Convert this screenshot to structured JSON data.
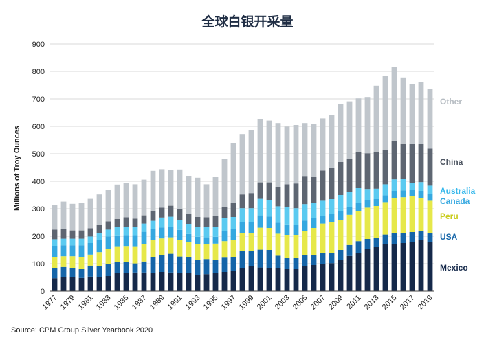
{
  "chart_data": {
    "type": "bar",
    "stacked": true,
    "title": "全球白银开采量",
    "ylabel": "Millions of Troy Ounces",
    "xlabel": "",
    "ylim": [
      0,
      900
    ],
    "yticks": [
      "0",
      "100",
      "200",
      "300",
      "400",
      "500",
      "600",
      "700",
      "800",
      "900"
    ],
    "grid": true,
    "legend": "right",
    "source": "Source: CPM Group Silver Yearbook 2020",
    "categories": [
      "1977",
      "1978",
      "1979",
      "1980",
      "1981",
      "1982",
      "1983",
      "1984",
      "1985",
      "1986",
      "1987",
      "1988",
      "1989",
      "1990",
      "1991",
      "1992",
      "1993",
      "1994",
      "1995",
      "1996",
      "1997",
      "1998",
      "1999",
      "2000",
      "2001",
      "2002",
      "2003",
      "2004",
      "2005",
      "2006",
      "2007",
      "2008",
      "2009",
      "2010",
      "2011",
      "2012",
      "2013",
      "2014",
      "2015",
      "2016",
      "2017",
      "2018",
      "2019"
    ],
    "tick_labels": [
      "1977",
      "1979",
      "1981",
      "1983",
      "1985",
      "1987",
      "1989",
      "1991",
      "1993",
      "1995",
      "1997",
      "1999",
      "2001",
      "2003",
      "2005",
      "2007",
      "2009",
      "2011",
      "2013",
      "2015",
      "2017",
      "2019"
    ],
    "series": [
      {
        "name": "Mexico",
        "color": "#15294a",
        "values": [
          47,
          50,
          50,
          48,
          53,
          50,
          55,
          65,
          67,
          68,
          68,
          67,
          70,
          68,
          66,
          65,
          60,
          62,
          65,
          70,
          75,
          85,
          90,
          86,
          85,
          85,
          80,
          80,
          90,
          95,
          100,
          102,
          115,
          128,
          140,
          155,
          160,
          170,
          172,
          175,
          180,
          185,
          180
        ]
      },
      {
        "name": "USA",
        "color": "#1565a8",
        "values": [
          38,
          38,
          35,
          32,
          40,
          40,
          44,
          40,
          40,
          33,
          40,
          57,
          62,
          68,
          60,
          58,
          55,
          55,
          50,
          52,
          50,
          60,
          55,
          65,
          65,
          44,
          40,
          40,
          40,
          35,
          38,
          38,
          35,
          40,
          42,
          35,
          35,
          36,
          40,
          37,
          35,
          35,
          31
        ]
      },
      {
        "name": "Peru",
        "color": "#e6e84a",
        "values": [
          40,
          39,
          42,
          45,
          40,
          52,
          56,
          56,
          55,
          60,
          64,
          62,
          60,
          60,
          60,
          55,
          55,
          55,
          58,
          60,
          62,
          67,
          67,
          80,
          80,
          80,
          85,
          85,
          90,
          100,
          108,
          110,
          110,
          110,
          110,
          114,
          115,
          118,
          128,
          130,
          130,
          120,
          118
        ]
      },
      {
        "name": "Canada",
        "color": "#35a8e0",
        "values": [
          40,
          40,
          40,
          42,
          42,
          45,
          44,
          42,
          42,
          43,
          44,
          40,
          40,
          38,
          37,
          30,
          28,
          24,
          25,
          38,
          38,
          40,
          40,
          45,
          42,
          40,
          38,
          37,
          37,
          35,
          28,
          30,
          30,
          28,
          28,
          28,
          25,
          25,
          25,
          25,
          25,
          25,
          25
        ]
      },
      {
        "name": "Australia",
        "color": "#5bcaf0",
        "values": [
          24,
          24,
          24,
          24,
          24,
          25,
          25,
          30,
          30,
          30,
          30,
          30,
          36,
          37,
          37,
          37,
          37,
          38,
          37,
          45,
          45,
          50,
          50,
          60,
          58,
          60,
          62,
          60,
          60,
          55,
          55,
          55,
          60,
          55,
          55,
          40,
          38,
          40,
          42,
          41,
          25,
          32,
          30
        ]
      },
      {
        "name": "China",
        "color": "#5e6672",
        "values": [
          35,
          35,
          30,
          30,
          30,
          30,
          30,
          30,
          35,
          30,
          30,
          37,
          36,
          40,
          38,
          35,
          35,
          35,
          40,
          40,
          50,
          50,
          55,
          60,
          66,
          70,
          84,
          90,
          100,
          95,
          110,
          115,
          120,
          120,
          130,
          130,
          135,
          125,
          140,
          130,
          140,
          140,
          135
        ]
      },
      {
        "name": "Other",
        "color": "#c0c6cc",
        "values": [
          90,
          100,
          97,
          100,
          107,
          110,
          115,
          125,
          124,
          125,
          130,
          145,
          140,
          130,
          145,
          140,
          143,
          120,
          140,
          175,
          220,
          220,
          230,
          230,
          225,
          233,
          210,
          213,
          195,
          195,
          190,
          190,
          210,
          210,
          197,
          205,
          240,
          270,
          270,
          240,
          220,
          225,
          217
        ]
      }
    ]
  }
}
